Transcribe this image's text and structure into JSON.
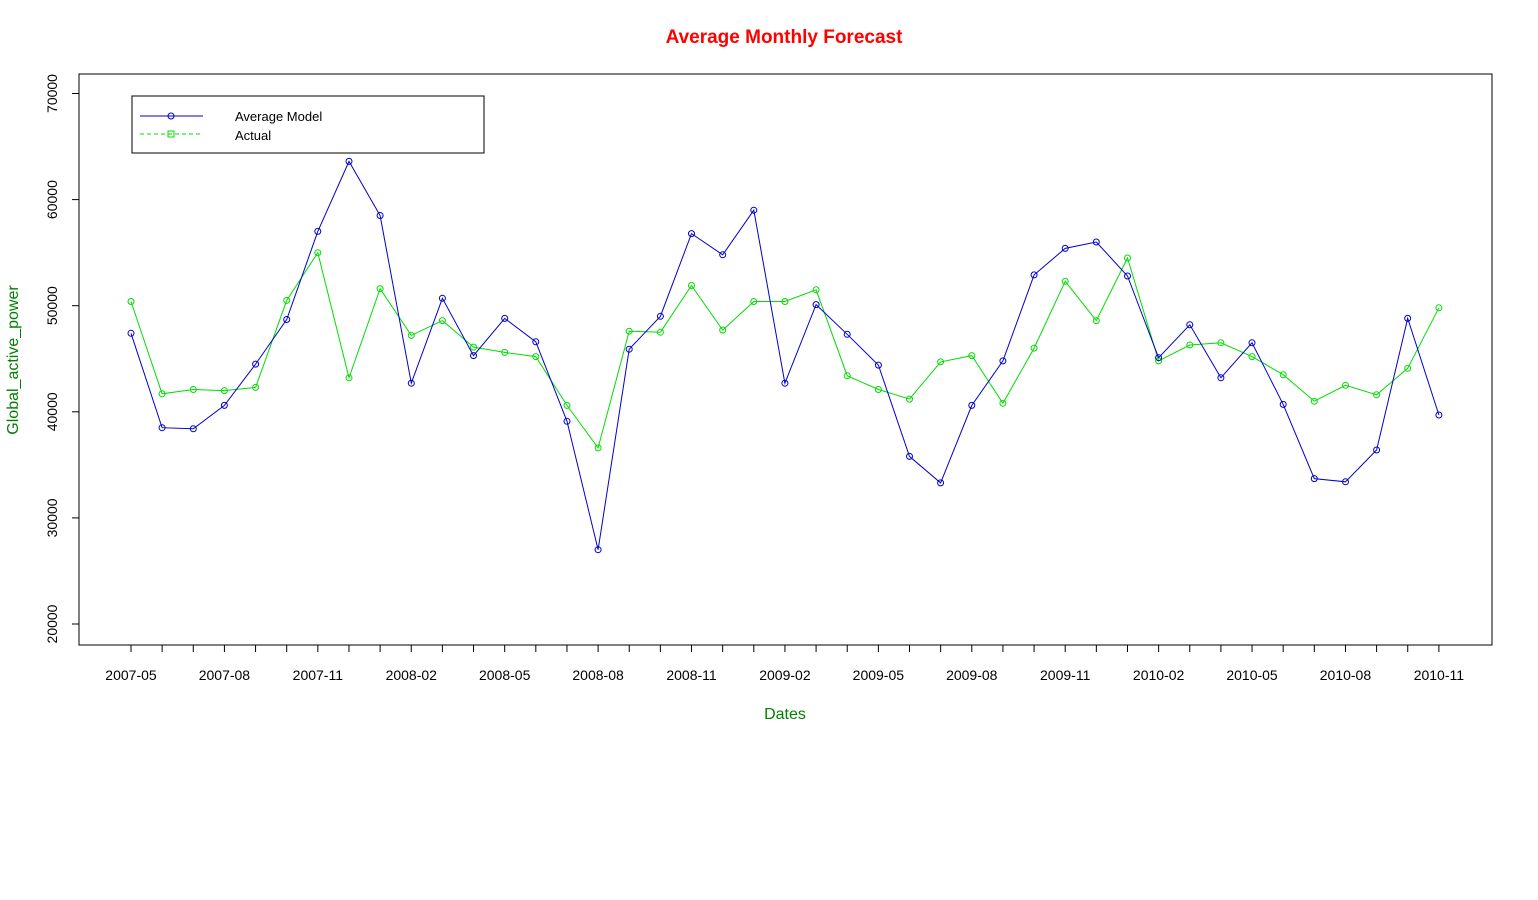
{
  "chart_data": {
    "type": "line",
    "title": "Average Monthly Forecast",
    "xlabel": "Dates",
    "ylabel": "Global_active_power",
    "ylim": [
      18000,
      72000
    ],
    "yticks": [
      20000,
      30000,
      40000,
      50000,
      60000,
      70000
    ],
    "ytick_labels": [
      "20000",
      "30000",
      "40000",
      "50000",
      "60000",
      "70000"
    ],
    "x": [
      "2007-05",
      "2007-06",
      "2007-07",
      "2007-08",
      "2007-09",
      "2007-10",
      "2007-11",
      "2007-12",
      "2008-01",
      "2008-02",
      "2008-03",
      "2008-04",
      "2008-05",
      "2008-06",
      "2008-07",
      "2008-08",
      "2008-09",
      "2008-10",
      "2008-11",
      "2008-12",
      "2009-01",
      "2009-02",
      "2009-03",
      "2009-04",
      "2009-05",
      "2009-06",
      "2009-07",
      "2009-08",
      "2009-09",
      "2009-10",
      "2009-11",
      "2009-12",
      "2010-01",
      "2010-02",
      "2010-03",
      "2010-04",
      "2010-05",
      "2010-06",
      "2010-07",
      "2010-08",
      "2010-09",
      "2010-10",
      "2010-11"
    ],
    "xtick_labels": [
      "2007-05",
      "2007-08",
      "2007-11",
      "2008-02",
      "2008-05",
      "2008-08",
      "2008-11",
      "2009-02",
      "2009-05",
      "2009-08",
      "2009-11",
      "2010-02",
      "2010-05",
      "2010-08",
      "2010-11"
    ],
    "grid": false,
    "legend_position": "top-left",
    "series": [
      {
        "name": "Average Model",
        "color": "#0000cc",
        "line_style": "solid",
        "marker": "circle",
        "values": [
          47400,
          38500,
          38400,
          40600,
          44500,
          48700,
          57000,
          63600,
          58500,
          42700,
          50700,
          45300,
          48800,
          46600,
          39100,
          27000,
          45900,
          49000,
          56800,
          54800,
          59000,
          42700,
          50100,
          47300,
          44400,
          35800,
          33300,
          40600,
          44800,
          52900,
          55400,
          56000,
          52800,
          45100,
          48200,
          43200,
          46500,
          40700,
          33700,
          33400,
          36400,
          48800,
          39700
        ]
      },
      {
        "name": "Actual",
        "color": "#00dd00",
        "line_style": "dashed",
        "marker": "circle",
        "values": [
          50400,
          41700,
          42100,
          42000,
          42300,
          50500,
          55000,
          43200,
          51600,
          47200,
          48600,
          46100,
          45600,
          45200,
          40600,
          36600,
          47600,
          47500,
          51900,
          47700,
          50400,
          50400,
          51500,
          43400,
          42100,
          41200,
          44700,
          45300,
          40800,
          46000,
          52300,
          48600,
          54500,
          44800,
          46300,
          46500,
          45200,
          43500,
          41000,
          42500,
          41600,
          44100,
          49800
        ]
      }
    ],
    "colors": {
      "title": "#ff0000",
      "axis_labels": "#008000",
      "frame": "#000000"
    }
  }
}
